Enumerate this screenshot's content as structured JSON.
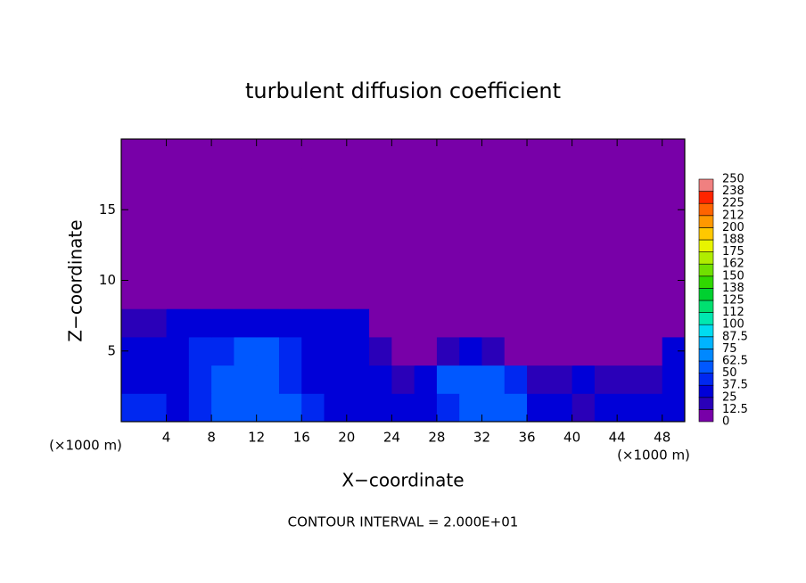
{
  "chart_data": {
    "type": "heatmap",
    "title": "turbulent diffusion coefficient",
    "x_label": "X−coordinate",
    "y_label": "Z−coordinate",
    "x_unit": "(×1000 m)",
    "x_unit_right": "(×1000 m)",
    "note": "CONTOUR INTERVAL = 2.000E+01",
    "xlim": [
      0,
      50
    ],
    "ylim": [
      0,
      20
    ],
    "xticks": [
      4,
      8,
      12,
      16,
      20,
      24,
      28,
      32,
      36,
      40,
      44,
      48
    ],
    "yticks": [
      5,
      10,
      15
    ],
    "z": [
      [
        45,
        40,
        35,
        40,
        55,
        60,
        60,
        55,
        40,
        35,
        30,
        30,
        30,
        30,
        45,
        55,
        60,
        50,
        30,
        25,
        20,
        25,
        30,
        35,
        35
      ],
      [
        30,
        30,
        30,
        45,
        55,
        60,
        60,
        45,
        35,
        30,
        25,
        25,
        20,
        25,
        50,
        60,
        55,
        40,
        20,
        20,
        25,
        15,
        20,
        20,
        25
      ],
      [
        30,
        30,
        35,
        40,
        45,
        55,
        55,
        40,
        35,
        30,
        30,
        20,
        10,
        10,
        20,
        30,
        20,
        5,
        0,
        5,
        0,
        0,
        5,
        10,
        25
      ],
      [
        15,
        20,
        25,
        30,
        30,
        35,
        35,
        30,
        30,
        25,
        25,
        10,
        0,
        0,
        0,
        0,
        0,
        0,
        0,
        0,
        0,
        0,
        0,
        0,
        10
      ],
      [
        0,
        0,
        0,
        5,
        5,
        5,
        5,
        5,
        0,
        0,
        0,
        0,
        0,
        0,
        0,
        0,
        0,
        0,
        0,
        0,
        0,
        0,
        0,
        0,
        0
      ],
      [
        0,
        0,
        0,
        0,
        0,
        0,
        0,
        0,
        0,
        0,
        0,
        0,
        0,
        0,
        0,
        0,
        0,
        0,
        0,
        0,
        0,
        0,
        0,
        0,
        0
      ],
      [
        0,
        0,
        0,
        0,
        0,
        0,
        0,
        0,
        0,
        0,
        0,
        0,
        0,
        0,
        0,
        0,
        0,
        0,
        0,
        0,
        0,
        0,
        0,
        0,
        0
      ],
      [
        0,
        0,
        0,
        0,
        0,
        0,
        0,
        0,
        0,
        0,
        0,
        0,
        0,
        0,
        0,
        0,
        0,
        0,
        0,
        0,
        0,
        0,
        0,
        0,
        0
      ],
      [
        0,
        0,
        0,
        0,
        0,
        0,
        0,
        0,
        0,
        0,
        0,
        0,
        0,
        0,
        0,
        0,
        0,
        0,
        0,
        0,
        0,
        0,
        0,
        0,
        0
      ],
      [
        0,
        0,
        0,
        0,
        0,
        0,
        0,
        0,
        0,
        0,
        0,
        0,
        0,
        0,
        0,
        0,
        0,
        0,
        0,
        0,
        0,
        0,
        0,
        0,
        0
      ]
    ],
    "levels": [
      0,
      12.5,
      25,
      37.5,
      50,
      62.5,
      75,
      87.5,
      100,
      {
        "value": 112.5,
        "label": "112"
      },
      125,
      {
        "value": 137.5,
        "label": "138"
      },
      150,
      {
        "value": 162.5,
        "label": "162"
      },
      175,
      {
        "value": 187.5,
        "label": "188"
      },
      200,
      {
        "value": 212.5,
        "label": "212"
      },
      225,
      {
        "value": 237.5,
        "label": "238"
      },
      250
    ],
    "colors": [
      "#7800a8",
      "#2a00b8",
      "#0000d8",
      "#0028f0",
      "#0058ff",
      "#0088ff",
      "#00b4ff",
      "#00dcf0",
      "#00e8b0",
      "#00e070",
      "#00d030",
      "#30d800",
      "#70e000",
      "#b0ec00",
      "#e8f400",
      "#ffc800",
      "#ff9800",
      "#ff6400",
      "#ff2400",
      "#f08080"
    ]
  }
}
